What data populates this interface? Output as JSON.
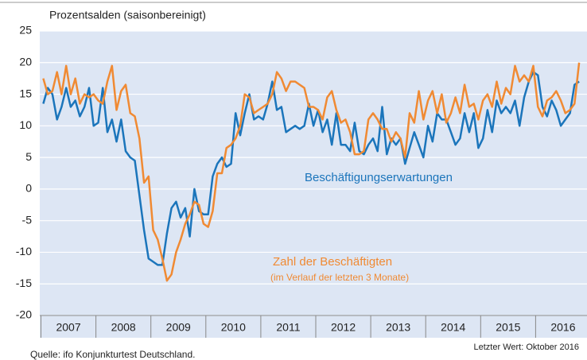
{
  "chart_data": {
    "type": "line",
    "title": "Prozentsalden (saisonbereinigt)",
    "source": "Quelle: ifo Konjunkturtest Deutschland.",
    "note": "Letzter Wert: Oktober 2016",
    "annotations": [
      "Beschäftigungserwartungen",
      "Zahl der Beschäftigten",
      "(im Verlauf der letzten 3 Monate)"
    ],
    "categories": [
      null,
      null,
      null,
      null,
      null,
      null,
      "2007",
      null,
      null,
      null,
      null,
      null,
      null,
      null,
      null,
      null,
      null,
      null,
      "2008",
      null,
      null,
      null,
      null,
      null,
      null,
      null,
      null,
      null,
      null,
      null,
      "2009",
      null,
      null,
      null,
      null,
      null,
      null,
      null,
      null,
      null,
      null,
      null,
      "2010",
      null,
      null,
      null,
      null,
      null,
      null,
      null,
      null,
      null,
      null,
      null,
      "2011",
      null,
      null,
      null,
      null,
      null,
      null,
      null,
      null,
      null,
      null,
      null,
      "2012",
      null,
      null,
      null,
      null,
      null,
      null,
      null,
      null,
      null,
      null,
      null,
      "2013",
      null,
      null,
      null,
      null,
      null,
      null,
      null,
      null,
      null,
      null,
      null,
      "2014",
      null,
      null,
      null,
      null,
      null,
      null,
      null,
      null,
      null,
      null,
      null,
      "2015",
      null,
      null,
      null,
      null,
      null,
      null,
      null,
      null,
      null,
      null,
      null,
      "2016",
      null,
      null,
      null
    ],
    "series": [
      {
        "name": "Beschäftigungserwartungen",
        "color": "#1b75bb",
        "values": [
          13.5,
          16,
          15,
          11,
          13,
          16,
          13,
          14,
          11.5,
          13,
          16,
          10,
          10.5,
          16,
          9,
          11,
          7.5,
          11,
          6,
          5,
          4.5,
          -1,
          -6.5,
          -11,
          -11.5,
          -12,
          -12,
          -7,
          -3,
          -2,
          -4.5,
          -3,
          -7.5,
          0,
          -3.5,
          -4,
          -4,
          2,
          4,
          5,
          3.5,
          4,
          12,
          8.5,
          12,
          15,
          11,
          11.5,
          11,
          13.5,
          17,
          12.5,
          13,
          9,
          9.5,
          10,
          9.5,
          10,
          13.5,
          10,
          12.5,
          9,
          11,
          7,
          12,
          7,
          7,
          6,
          10.5,
          6,
          5.5,
          7,
          8,
          6,
          13,
          5.5,
          8,
          7,
          8,
          4,
          6.5,
          9,
          7,
          5,
          10,
          7.5,
          12,
          11,
          11,
          9,
          7,
          8,
          12,
          9,
          12,
          6.5,
          8,
          12.5,
          9,
          14,
          12,
          13,
          12,
          14,
          10,
          14.5,
          17,
          18.5,
          18,
          13,
          11.5,
          14,
          12.5,
          10,
          11,
          12,
          16.5,
          17
        ]
      },
      {
        "name": "Zahl der Beschäftigten",
        "color": "#f08a33",
        "values": [
          17.5,
          15,
          15.5,
          18.5,
          15,
          19.5,
          15,
          17.5,
          13.5,
          15,
          14.5,
          15,
          14,
          13.5,
          17,
          19.5,
          12.5,
          15.5,
          16.5,
          12,
          11.5,
          8,
          1,
          2,
          -6.5,
          -8,
          -11,
          -14.5,
          -13.5,
          -10,
          -8,
          -5.5,
          -4,
          -2,
          -2.5,
          -5.5,
          -6,
          -3.5,
          2.5,
          2.5,
          6.5,
          7,
          8,
          10,
          15,
          14.5,
          12,
          12.5,
          13,
          13.5,
          15,
          18.5,
          17.5,
          15.5,
          17,
          17,
          16.5,
          16,
          13,
          13,
          12.5,
          11,
          14.5,
          15.5,
          12.5,
          10.5,
          11,
          9,
          5.5,
          5.5,
          6,
          11,
          12,
          11,
          9.5,
          9.5,
          7.5,
          9,
          8,
          5,
          12,
          10.5,
          15.5,
          11,
          14,
          15.5,
          12,
          15,
          10.5,
          12,
          14.5,
          12,
          16.5,
          13,
          13.5,
          11,
          14,
          15,
          13,
          17,
          13.5,
          16,
          15,
          19.5,
          17,
          18,
          17,
          19.5,
          13,
          11.5,
          14,
          14.5,
          15.5,
          14,
          12,
          12.5,
          13.5,
          20
        ]
      }
    ],
    "ylim": [
      -20,
      25
    ],
    "yticks": [
      -20,
      -15,
      -10,
      -5,
      0,
      5,
      10,
      15,
      20,
      25
    ],
    "grid": true
  }
}
